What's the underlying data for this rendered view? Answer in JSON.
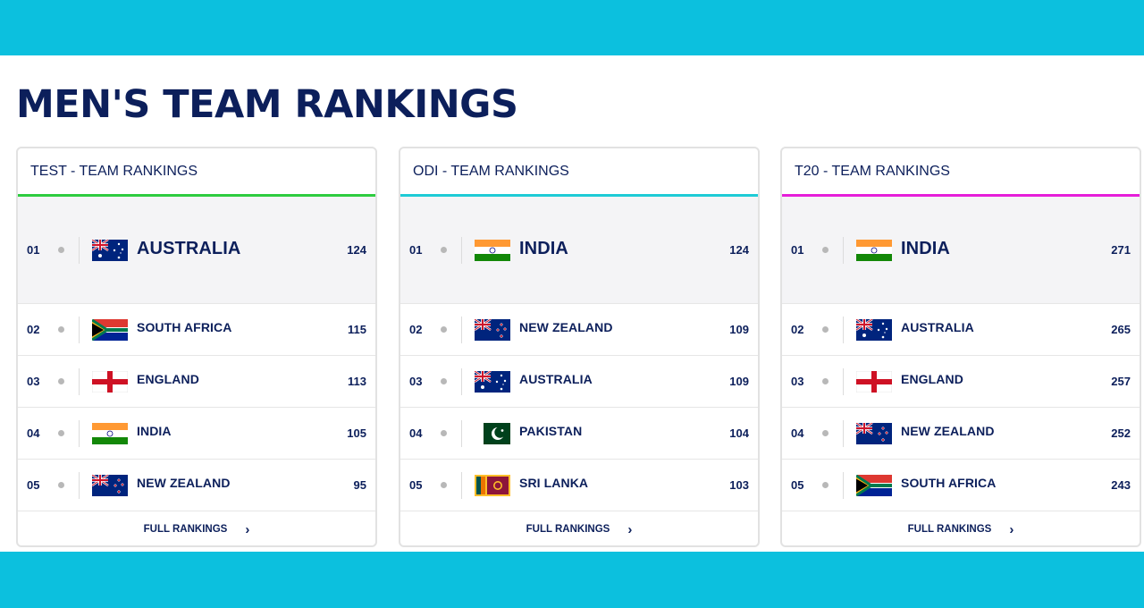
{
  "page": {
    "title": "MEN'S TEAM RANKINGS",
    "accent": "#0cc0de",
    "text_color": "#0c1f5b"
  },
  "panels": [
    {
      "title": "TEST - TEAM RANKINGS",
      "underline_color": "#2ecc40",
      "full_rankings_label": "FULL RANKINGS",
      "chevron": "›",
      "rows": [
        {
          "rank": "01",
          "team": "AUSTRALIA",
          "rating": "124",
          "flag": "australia-flag"
        },
        {
          "rank": "02",
          "team": "SOUTH AFRICA",
          "rating": "115",
          "flag": "south-africa-flag"
        },
        {
          "rank": "03",
          "team": "ENGLAND",
          "rating": "113",
          "flag": "england-flag"
        },
        {
          "rank": "04",
          "team": "INDIA",
          "rating": "105",
          "flag": "india-flag"
        },
        {
          "rank": "05",
          "team": "NEW ZEALAND",
          "rating": "95",
          "flag": "new-zealand-flag"
        }
      ]
    },
    {
      "title": "ODI - TEAM RANKINGS",
      "underline_color": "#1ecbd6",
      "full_rankings_label": "FULL RANKINGS",
      "chevron": "›",
      "rows": [
        {
          "rank": "01",
          "team": "INDIA",
          "rating": "124",
          "flag": "india-flag"
        },
        {
          "rank": "02",
          "team": "NEW ZEALAND",
          "rating": "109",
          "flag": "new-zealand-flag"
        },
        {
          "rank": "03",
          "team": "AUSTRALIA",
          "rating": "109",
          "flag": "australia-flag"
        },
        {
          "rank": "04",
          "team": "PAKISTAN",
          "rating": "104",
          "flag": "pakistan-flag"
        },
        {
          "rank": "05",
          "team": "SRI LANKA",
          "rating": "103",
          "flag": "sri-lanka-flag"
        }
      ]
    },
    {
      "title": "T20 - TEAM RANKINGS",
      "underline_color": "#e61ed9",
      "full_rankings_label": "FULL RANKINGS",
      "chevron": "›",
      "rows": [
        {
          "rank": "01",
          "team": "INDIA",
          "rating": "271",
          "flag": "india-flag"
        },
        {
          "rank": "02",
          "team": "AUSTRALIA",
          "rating": "265",
          "flag": "australia-flag"
        },
        {
          "rank": "03",
          "team": "ENGLAND",
          "rating": "257",
          "flag": "england-flag"
        },
        {
          "rank": "04",
          "team": "NEW ZEALAND",
          "rating": "252",
          "flag": "new-zealand-flag"
        },
        {
          "rank": "05",
          "team": "SOUTH AFRICA",
          "rating": "243",
          "flag": "south-africa-flag"
        }
      ]
    }
  ]
}
